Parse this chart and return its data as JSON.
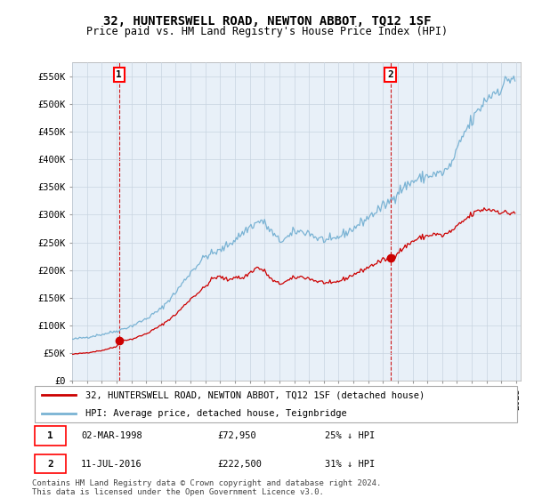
{
  "title": "32, HUNTERSWELL ROAD, NEWTON ABBOT, TQ12 1SF",
  "subtitle": "Price paid vs. HM Land Registry's House Price Index (HPI)",
  "legend_line1": "32, HUNTERSWELL ROAD, NEWTON ABBOT, TQ12 1SF (detached house)",
  "legend_line2": "HPI: Average price, detached house, Teignbridge",
  "sale1_date": "02-MAR-1998",
  "sale1_price": 72950,
  "sale1_label": "1",
  "sale1_hpi_pct": "25% ↓ HPI",
  "sale2_date": "11-JUL-2016",
  "sale2_price": 222500,
  "sale2_label": "2",
  "sale2_hpi_pct": "31% ↓ HPI",
  "footer": "Contains HM Land Registry data © Crown copyright and database right 2024.\nThis data is licensed under the Open Government Licence v3.0.",
  "ylim": [
    0,
    575000
  ],
  "yticks": [
    0,
    50000,
    100000,
    150000,
    200000,
    250000,
    300000,
    350000,
    400000,
    450000,
    500000,
    550000
  ],
  "ytick_labels": [
    "£0",
    "£50K",
    "£100K",
    "£150K",
    "£200K",
    "£250K",
    "£300K",
    "£350K",
    "£400K",
    "£450K",
    "£500K",
    "£550K"
  ],
  "hpi_color": "#7ab3d4",
  "sold_color": "#cc0000",
  "background_color": "#ffffff",
  "plot_bg_color": "#e8f0f8",
  "grid_color": "#c8d4e0",
  "title_fontsize": 10,
  "subtitle_fontsize": 8.5,
  "axis_fontsize": 7.5,
  "legend_fontsize": 7.5,
  "annotation_fontsize": 8,
  "footer_fontsize": 6.5,
  "hpi_waypoints": {
    "1995.0": 75000,
    "1996.0": 79000,
    "1997.0": 84000,
    "1998.0": 90000,
    "1999.0": 99000,
    "2000.0": 112000,
    "2001.0": 130000,
    "2002.0": 160000,
    "2003.0": 196000,
    "2004.0": 225000,
    "2005.0": 235000,
    "2006.0": 255000,
    "2007.0": 278000,
    "2007.8": 290000,
    "2008.5": 268000,
    "2009.0": 252000,
    "2009.8": 262000,
    "2010.0": 270000,
    "2011.0": 268000,
    "2011.5": 258000,
    "2012.0": 255000,
    "2012.5": 252000,
    "2013.0": 260000,
    "2014.0": 275000,
    "2015.0": 295000,
    "2016.0": 315000,
    "2016.5": 325000,
    "2017.0": 342000,
    "2018.0": 360000,
    "2019.0": 370000,
    "2020.0": 375000,
    "2020.5": 385000,
    "2021.0": 415000,
    "2021.5": 448000,
    "2022.0": 468000,
    "2022.5": 490000,
    "2023.0": 510000,
    "2023.5": 520000,
    "2024.0": 530000,
    "2024.5": 545000,
    "2024.9": 548000
  },
  "sold_waypoints": {
    "1995.0": 48000,
    "1996.0": 51000,
    "1997.0": 55000,
    "1998.0": 62000,
    "1998.2": 72950,
    "1999.0": 75000,
    "2000.0": 85000,
    "2001.0": 100000,
    "2002.0": 120000,
    "2003.0": 148000,
    "2004.0": 170000,
    "2004.5": 185000,
    "2005.0": 188000,
    "2005.5": 182000,
    "2006.0": 188000,
    "2006.5": 185000,
    "2007.0": 195000,
    "2007.5": 205000,
    "2008.0": 198000,
    "2008.5": 182000,
    "2009.0": 175000,
    "2009.5": 180000,
    "2010.0": 186000,
    "2010.5": 188000,
    "2011.0": 185000,
    "2011.5": 180000,
    "2012.0": 178000,
    "2012.5": 175000,
    "2013.0": 180000,
    "2013.5": 185000,
    "2014.0": 192000,
    "2014.5": 198000,
    "2015.0": 205000,
    "2015.5": 212000,
    "2016.0": 218000,
    "2016.5": 222500,
    "2017.0": 232000,
    "2017.5": 242000,
    "2018.0": 252000,
    "2018.5": 258000,
    "2019.0": 262000,
    "2019.5": 265000,
    "2020.0": 262000,
    "2020.5": 268000,
    "2021.0": 278000,
    "2021.5": 290000,
    "2022.0": 300000,
    "2022.5": 308000,
    "2023.0": 310000,
    "2023.5": 308000,
    "2024.0": 305000,
    "2024.5": 302000,
    "2024.9": 305000
  }
}
